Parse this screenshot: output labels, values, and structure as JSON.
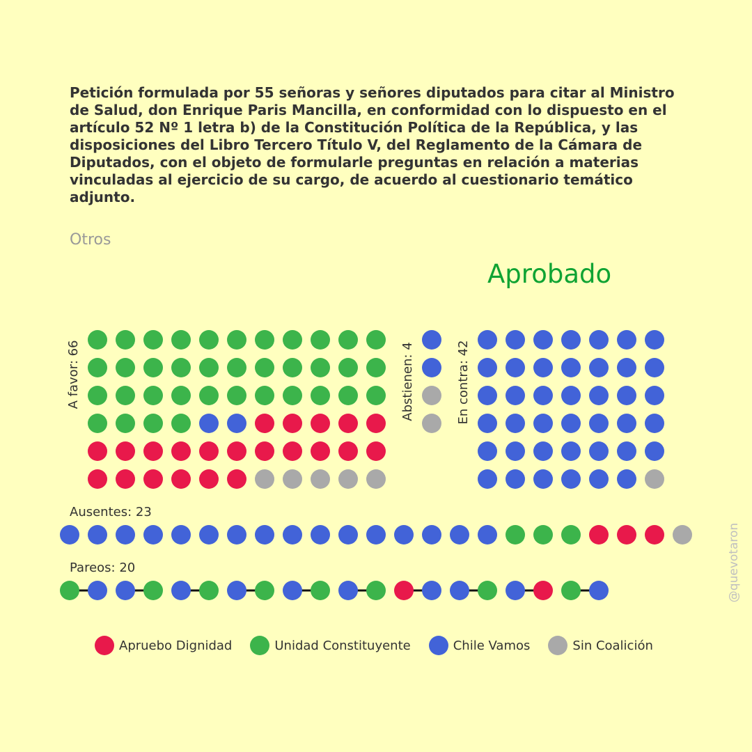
{
  "header": {
    "title": "Petición formulada por 55 señoras y señores diputados para citar al Ministro de Salud, don Enrique Paris Mancilla, en conformidad con lo dispuesto en el artículo 52 Nº 1 letra b) de la Constitución Política de la República, y las disposiciones del Libro Tercero Título V, del Reglamento de la Cámara de Diputados, con el objeto de formularle preguntas en relación a materias vinculadas al ejercicio de su cargo, de acuerdo al cuestionario temático adjunto.",
    "category": "Otros",
    "result": "Aprobado",
    "result_color": "#0fa333"
  },
  "watermark": "@quevotaron",
  "colors": {
    "apruebo": "#e8194b",
    "unidad": "#3cb44b",
    "chile": "#4263d8",
    "sin": "#a9a9a9"
  },
  "chart_data": {
    "type": "dot-grid",
    "legend": [
      {
        "key": "apruebo",
        "label": "Apruebo Dignidad"
      },
      {
        "key": "unidad",
        "label": "Unidad Constituyente"
      },
      {
        "key": "chile",
        "label": "Chile Vamos"
      },
      {
        "key": "sin",
        "label": "Sin Coalición"
      }
    ],
    "groups": [
      {
        "id": "favor",
        "label": "A favor: 66",
        "total": 66,
        "counts": {
          "unidad": 37,
          "chile": 2,
          "apruebo": 22,
          "sin": 5
        }
      },
      {
        "id": "abstienen",
        "label": "Abstienen: 4",
        "total": 4,
        "counts": {
          "chile": 2,
          "sin": 2
        }
      },
      {
        "id": "contra",
        "label": "En contra: 42",
        "total": 42,
        "counts": {
          "chile": 41,
          "sin": 1
        }
      },
      {
        "id": "ausentes",
        "label": "Ausentes: 23",
        "total": 23,
        "counts": {
          "chile": 16,
          "unidad": 3,
          "apruebo": 3,
          "sin": 1
        }
      },
      {
        "id": "pareos",
        "label": "Pareos: 20",
        "total": 20,
        "sequence": [
          "unidad",
          "chile",
          "chile",
          "unidad",
          "chile",
          "unidad",
          "chile",
          "unidad",
          "chile",
          "unidad",
          "chile",
          "unidad",
          "apruebo",
          "chile",
          "chile",
          "unidad",
          "chile",
          "apruebo",
          "unidad",
          "chile"
        ]
      }
    ]
  }
}
